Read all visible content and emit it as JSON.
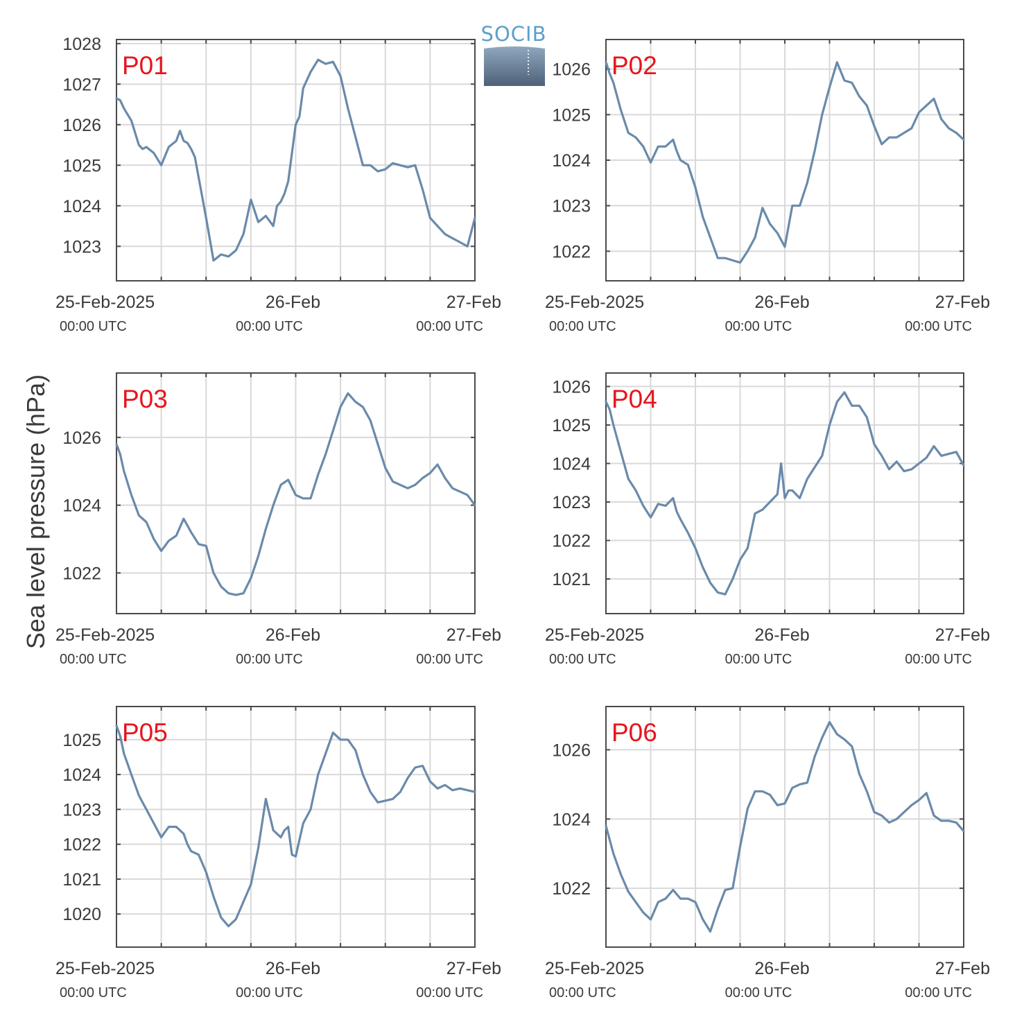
{
  "ylabel": "Sea level pressure (hPa)",
  "logo": {
    "text": "SOCIB"
  },
  "colors": {
    "line": "#6a8aaa",
    "panel_label": "#e8141c",
    "grid": "#d9d9d9",
    "axis": "#4a4a4a"
  },
  "x_ticks": [
    {
      "date": "25-Feb-2025",
      "time": "00:00 UTC"
    },
    {
      "date": "26-Feb",
      "time": "00:00 UTC"
    },
    {
      "date": "27-Feb",
      "time": "00:00 UTC"
    }
  ],
  "chart_data": [
    {
      "type": "line",
      "label": "P01",
      "xlim": [
        0,
        48
      ],
      "ylim": [
        1022.15,
        1028.1
      ],
      "yticks": [
        1023,
        1024,
        1025,
        1026,
        1027,
        1028
      ],
      "x": [
        0,
        0.5,
        1,
        2,
        3,
        3.5,
        4,
        5,
        6,
        7,
        8,
        8.5,
        9,
        9.5,
        10,
        10.5,
        11,
        11.5,
        12,
        13,
        14,
        15,
        16,
        17,
        18,
        19,
        20,
        21,
        21.5,
        22,
        22.5,
        23,
        23.5,
        24,
        24.5,
        25,
        26,
        27,
        28,
        29,
        30,
        31,
        32,
        33,
        34,
        35,
        36,
        37,
        38,
        39,
        40,
        41,
        42,
        43,
        44,
        45,
        46,
        47,
        48
      ],
      "y": [
        1026.65,
        1026.6,
        1026.4,
        1026.1,
        1025.5,
        1025.4,
        1025.45,
        1025.3,
        1025.0,
        1025.45,
        1025.6,
        1025.85,
        1025.6,
        1025.55,
        1025.4,
        1025.2,
        1024.7,
        1024.2,
        1023.7,
        1022.65,
        1022.8,
        1022.75,
        1022.9,
        1023.3,
        1024.15,
        1023.6,
        1023.75,
        1023.5,
        1024.0,
        1024.1,
        1024.3,
        1024.6,
        1025.3,
        1026.0,
        1026.2,
        1026.9,
        1027.3,
        1027.6,
        1027.5,
        1027.55,
        1027.2,
        1026.4,
        1025.7,
        1025.0,
        1025.0,
        1024.85,
        1024.9,
        1025.05,
        1025.0,
        1024.95,
        1025.0,
        1024.4,
        1023.7,
        1023.5,
        1023.3,
        1023.2,
        1023.1,
        1023.0,
        1023.7
      ]
    },
    {
      "type": "line",
      "label": "P02",
      "xlim": [
        0,
        48
      ],
      "ylim": [
        1021.35,
        1026.65
      ],
      "yticks": [
        1022,
        1023,
        1024,
        1025,
        1026
      ],
      "x": [
        0,
        0.5,
        1,
        2,
        3,
        4,
        5,
        6,
        7,
        8,
        9,
        9.5,
        10,
        11,
        12,
        13,
        14,
        15,
        16,
        17,
        18,
        19,
        20,
        21,
        22,
        23,
        24,
        25,
        26,
        27,
        28,
        29,
        30,
        31,
        32,
        33,
        34,
        35,
        36,
        37,
        38,
        39,
        40,
        41,
        42,
        43,
        44,
        45,
        46,
        47,
        48
      ],
      "y": [
        1026.15,
        1025.9,
        1025.7,
        1025.1,
        1024.6,
        1024.5,
        1024.3,
        1023.95,
        1024.3,
        1024.3,
        1024.45,
        1024.2,
        1024.0,
        1023.9,
        1023.4,
        1022.75,
        1022.3,
        1021.85,
        1021.85,
        1021.8,
        1021.75,
        1022.0,
        1022.3,
        1022.95,
        1022.6,
        1022.4,
        1022.1,
        1023.0,
        1023.0,
        1023.5,
        1024.2,
        1025.0,
        1025.6,
        1026.15,
        1025.75,
        1025.7,
        1025.4,
        1025.2,
        1024.75,
        1024.35,
        1024.5,
        1024.5,
        1024.6,
        1024.7,
        1025.05,
        1025.2,
        1025.35,
        1024.9,
        1024.7,
        1024.6,
        1024.45
      ]
    },
    {
      "type": "line",
      "label": "P03",
      "xlim": [
        0,
        48
      ],
      "ylim": [
        1020.8,
        1027.9
      ],
      "yticks": [
        1022,
        1024,
        1026
      ],
      "x": [
        0,
        0.5,
        1,
        2,
        3,
        4,
        5,
        6,
        7,
        8,
        9,
        9.5,
        10,
        11,
        12,
        13,
        14,
        15,
        16,
        17,
        18,
        19,
        20,
        21,
        22,
        23,
        24,
        25,
        26,
        27,
        28,
        29,
        30,
        31,
        32,
        33,
        34,
        35,
        36,
        37,
        38,
        39,
        40,
        41,
        42,
        43,
        44,
        45,
        46,
        47,
        48
      ],
      "y": [
        1025.8,
        1025.5,
        1025.0,
        1024.3,
        1023.7,
        1023.5,
        1023.0,
        1022.65,
        1022.95,
        1023.1,
        1023.6,
        1023.4,
        1023.2,
        1022.85,
        1022.8,
        1022.0,
        1021.6,
        1021.4,
        1021.35,
        1021.4,
        1021.85,
        1022.5,
        1023.3,
        1024.0,
        1024.6,
        1024.75,
        1024.3,
        1024.2,
        1024.2,
        1024.9,
        1025.5,
        1026.2,
        1026.9,
        1027.3,
        1027.05,
        1026.9,
        1026.5,
        1025.8,
        1025.1,
        1024.7,
        1024.6,
        1024.5,
        1024.6,
        1024.8,
        1024.95,
        1025.2,
        1024.8,
        1024.5,
        1024.4,
        1024.3,
        1024.0
      ]
    },
    {
      "type": "line",
      "label": "P04",
      "xlim": [
        0,
        48
      ],
      "ylim": [
        1020.1,
        1026.35
      ],
      "yticks": [
        1021,
        1022,
        1023,
        1024,
        1025,
        1026
      ],
      "x": [
        0,
        0.5,
        1,
        2,
        3,
        4,
        5,
        6,
        7,
        8,
        9,
        9.5,
        10,
        11,
        12,
        13,
        14,
        15,
        16,
        17,
        18,
        19,
        20,
        21,
        22,
        23,
        23.5,
        24,
        24.5,
        25,
        26,
        27,
        28,
        29,
        30,
        31,
        32,
        33,
        34,
        35,
        36,
        37,
        38,
        39,
        40,
        41,
        42,
        43,
        44,
        45,
        46,
        47,
        48
      ],
      "y": [
        1025.6,
        1025.4,
        1025.0,
        1024.3,
        1023.6,
        1023.3,
        1022.9,
        1022.6,
        1022.95,
        1022.9,
        1023.1,
        1022.75,
        1022.55,
        1022.2,
        1021.8,
        1021.3,
        1020.9,
        1020.65,
        1020.6,
        1021.0,
        1021.5,
        1021.8,
        1022.7,
        1022.8,
        1023.0,
        1023.2,
        1024.0,
        1023.1,
        1023.3,
        1023.3,
        1023.1,
        1023.6,
        1023.9,
        1024.2,
        1025.0,
        1025.6,
        1025.85,
        1025.5,
        1025.5,
        1025.2,
        1024.5,
        1024.2,
        1023.85,
        1024.05,
        1023.8,
        1023.85,
        1024.0,
        1024.15,
        1024.45,
        1024.2,
        1024.25,
        1024.3,
        1023.95
      ]
    },
    {
      "type": "line",
      "label": "P05",
      "xlim": [
        0,
        48
      ],
      "ylim": [
        1019.05,
        1025.95
      ],
      "yticks": [
        1020,
        1021,
        1022,
        1023,
        1024,
        1025
      ],
      "x": [
        0,
        0.5,
        1,
        2,
        3,
        4,
        5,
        6,
        7,
        8,
        9,
        9.5,
        10,
        11,
        12,
        13,
        14,
        15,
        16,
        17,
        18,
        19,
        20,
        21,
        22,
        22.5,
        23,
        23.5,
        24,
        25,
        26,
        27,
        28,
        29,
        30,
        31,
        32,
        33,
        34,
        35,
        36,
        37,
        38,
        39,
        40,
        41,
        42,
        43,
        44,
        45,
        46,
        47,
        48
      ],
      "y": [
        1025.4,
        1025.1,
        1024.6,
        1024.0,
        1023.4,
        1023.0,
        1022.6,
        1022.2,
        1022.5,
        1022.5,
        1022.3,
        1022.0,
        1021.8,
        1021.7,
        1021.2,
        1020.5,
        1019.9,
        1019.65,
        1019.85,
        1020.35,
        1020.85,
        1021.9,
        1023.3,
        1022.4,
        1022.2,
        1022.4,
        1022.5,
        1021.7,
        1021.65,
        1022.6,
        1023.0,
        1024.0,
        1024.6,
        1025.2,
        1025.0,
        1025.0,
        1024.7,
        1024.0,
        1023.5,
        1023.2,
        1023.25,
        1023.3,
        1023.5,
        1023.9,
        1024.2,
        1024.25,
        1023.8,
        1023.6,
        1023.7,
        1023.55,
        1023.6,
        1023.55,
        1023.5
      ]
    },
    {
      "type": "line",
      "label": "P06",
      "xlim": [
        0,
        48
      ],
      "ylim": [
        1020.3,
        1027.25
      ],
      "yticks": [
        1022,
        1024,
        1026
      ],
      "x": [
        0,
        1,
        2,
        3,
        4,
        5,
        6,
        7,
        8,
        9,
        10,
        11,
        12,
        13,
        14,
        15,
        16,
        17,
        18,
        19,
        20,
        21,
        22,
        23,
        24,
        25,
        26,
        27,
        28,
        29,
        30,
        31,
        32,
        33,
        34,
        35,
        36,
        37,
        38,
        39,
        40,
        41,
        42,
        43,
        44,
        45,
        46,
        47,
        48
      ],
      "y": [
        1023.8,
        1023.0,
        1022.4,
        1021.9,
        1021.6,
        1021.3,
        1021.1,
        1021.6,
        1021.7,
        1021.95,
        1021.7,
        1021.7,
        1021.6,
        1021.1,
        1020.75,
        1021.4,
        1021.95,
        1022.0,
        1023.2,
        1024.3,
        1024.8,
        1024.8,
        1024.7,
        1024.4,
        1024.45,
        1024.9,
        1025.0,
        1025.05,
        1025.8,
        1026.35,
        1026.8,
        1026.45,
        1026.3,
        1026.1,
        1025.3,
        1024.8,
        1024.2,
        1024.1,
        1023.9,
        1024.0,
        1024.2,
        1024.4,
        1024.55,
        1024.75,
        1024.1,
        1023.95,
        1023.95,
        1023.9,
        1023.65
      ]
    }
  ]
}
